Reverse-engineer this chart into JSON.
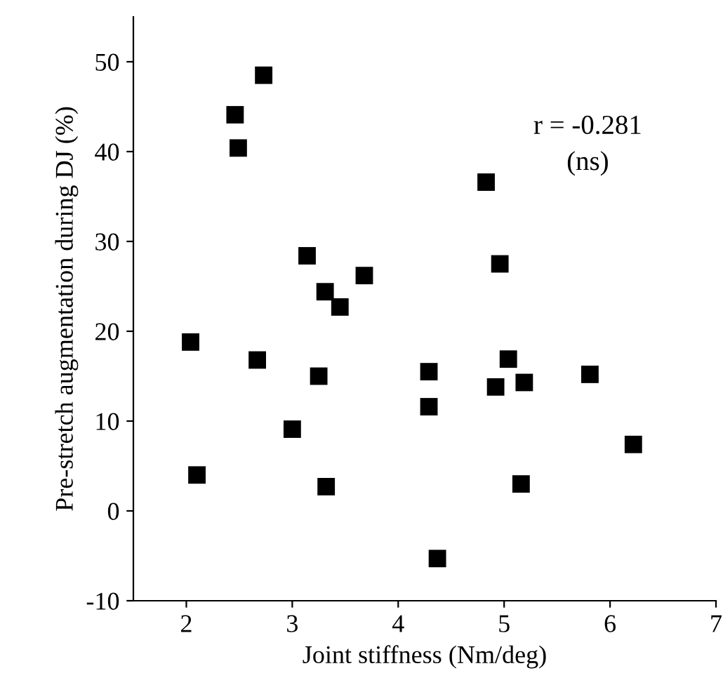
{
  "chart_data": {
    "type": "scatter",
    "xlabel": "Joint stiffness (Nm/deg)",
    "ylabel": "Pre-stretch augmentation during DJ (%)",
    "x": [
      2.73,
      2.46,
      2.49,
      4.83,
      3.14,
      4.96,
      3.68,
      3.31,
      3.45,
      2.04,
      2.67,
      5.04,
      4.29,
      5.81,
      3.25,
      5.19,
      4.92,
      4.29,
      3.0,
      6.22,
      2.1,
      5.16,
      3.32,
      4.37
    ],
    "values": [
      48.5,
      44.1,
      40.4,
      36.6,
      28.4,
      27.5,
      26.2,
      24.4,
      22.7,
      18.8,
      16.8,
      16.9,
      15.5,
      15.2,
      15.0,
      14.3,
      13.8,
      11.6,
      9.1,
      7.4,
      4.0,
      3.0,
      2.7,
      -5.3
    ],
    "color": "#000000",
    "marker": "square",
    "xlim": [
      1.5,
      7
    ],
    "xticks": [
      2,
      3,
      4,
      5,
      6,
      7
    ],
    "ylim": [
      -10,
      55
    ],
    "yticks": [
      -10,
      0,
      10,
      20,
      30,
      40,
      50
    ],
    "annotations": [
      "r = -0.281\n(ns)"
    ],
    "grid": false,
    "legend": false
  }
}
